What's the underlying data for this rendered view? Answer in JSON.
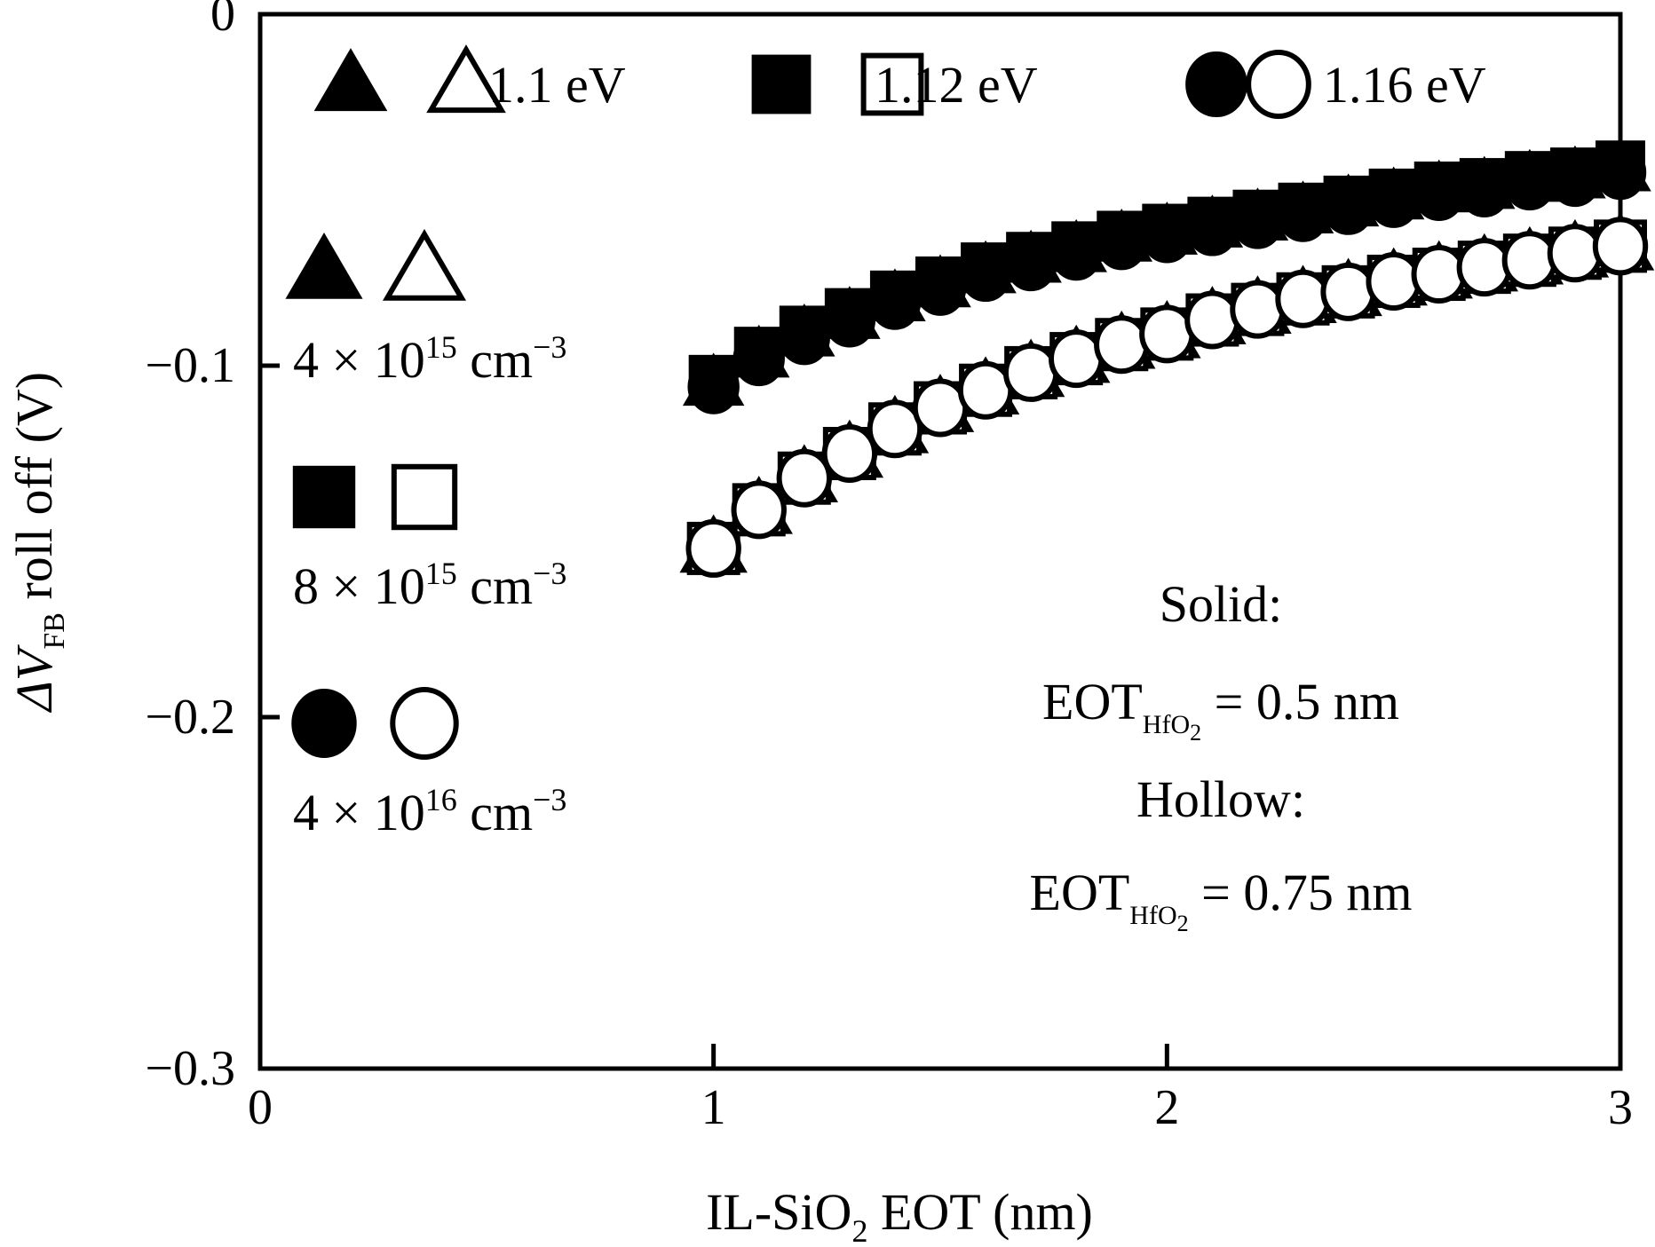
{
  "chart_data": {
    "type": "scatter",
    "title": "",
    "xlabel": {
      "main": "IL-SiO",
      "sub": "2",
      "tail": " EOT (nm)"
    },
    "ylabel": {
      "prefix": "ΔV",
      "sub": "FB",
      "tail": " roll off (V)"
    },
    "xlim": [
      0,
      3
    ],
    "ylim": [
      -0.3,
      0
    ],
    "xticks": [
      0,
      1,
      2,
      3
    ],
    "xtick_labels": [
      "0",
      "1",
      "2",
      "3"
    ],
    "yticks": [
      0,
      -0.1,
      -0.2,
      -0.3
    ],
    "ytick_labels": [
      "0",
      "−0.1",
      "−0.2",
      "−0.3"
    ],
    "x": [
      1.0,
      1.1,
      1.2,
      1.3,
      1.4,
      1.5,
      1.6,
      1.7,
      1.8,
      1.9,
      2.0,
      2.1,
      2.2,
      2.3,
      2.4,
      2.5,
      2.6,
      2.7,
      2.8,
      2.9,
      3.0
    ],
    "series": [
      {
        "name": "1.1 eV, 4 × 10^15 cm^-3, EOT_HfO2 = 0.5 nm",
        "marker": "triangle",
        "filled": true,
        "values": [
          -0.105,
          -0.097,
          -0.091,
          -0.086,
          -0.081,
          -0.077,
          -0.073,
          -0.07,
          -0.067,
          -0.064,
          -0.062,
          -0.06,
          -0.058,
          -0.056,
          -0.054,
          -0.052,
          -0.05,
          -0.049,
          -0.047,
          -0.046,
          -0.044
        ]
      },
      {
        "name": "1.12 eV, 8 × 10^15 cm^-3, EOT_HfO2 = 0.5 nm",
        "marker": "square",
        "filled": true,
        "values": [
          -0.104,
          -0.096,
          -0.09,
          -0.085,
          -0.08,
          -0.076,
          -0.072,
          -0.069,
          -0.066,
          -0.063,
          -0.061,
          -0.059,
          -0.057,
          -0.055,
          -0.053,
          -0.051,
          -0.049,
          -0.048,
          -0.046,
          -0.045,
          -0.043
        ]
      },
      {
        "name": "1.16 eV, 4 × 10^16 cm^-3, EOT_HfO2 = 0.5 nm",
        "marker": "circle",
        "filled": true,
        "values": [
          -0.106,
          -0.098,
          -0.092,
          -0.087,
          -0.082,
          -0.078,
          -0.074,
          -0.071,
          -0.068,
          -0.065,
          -0.063,
          -0.061,
          -0.059,
          -0.057,
          -0.055,
          -0.053,
          -0.051,
          -0.05,
          -0.048,
          -0.047,
          -0.045
        ]
      },
      {
        "name": "1.1 eV, 4 × 10^15 cm^-3, EOT_HfO2 = 0.75 nm",
        "marker": "triangle",
        "filled": false,
        "values": [
          -0.152,
          -0.141,
          -0.132,
          -0.125,
          -0.118,
          -0.112,
          -0.107,
          -0.102,
          -0.098,
          -0.094,
          -0.091,
          -0.087,
          -0.084,
          -0.081,
          -0.079,
          -0.076,
          -0.074,
          -0.072,
          -0.07,
          -0.068,
          -0.066
        ]
      },
      {
        "name": "1.12 eV, 8 × 10^15 cm^-3, EOT_HfO2 = 0.75 nm",
        "marker": "square",
        "filled": false,
        "values": [
          -0.152,
          -0.141,
          -0.132,
          -0.125,
          -0.118,
          -0.112,
          -0.107,
          -0.102,
          -0.098,
          -0.094,
          -0.091,
          -0.087,
          -0.084,
          -0.081,
          -0.079,
          -0.076,
          -0.074,
          -0.072,
          -0.07,
          -0.068,
          -0.066
        ]
      },
      {
        "name": "1.16 eV, 4 × 10^16 cm^-3, EOT_HfO2 = 0.75 nm",
        "marker": "circle",
        "filled": false,
        "values": [
          -0.152,
          -0.141,
          -0.132,
          -0.125,
          -0.118,
          -0.112,
          -0.107,
          -0.102,
          -0.098,
          -0.094,
          -0.091,
          -0.087,
          -0.084,
          -0.081,
          -0.079,
          -0.076,
          -0.074,
          -0.072,
          -0.07,
          -0.068,
          -0.066
        ]
      }
    ],
    "legend_top": [
      {
        "label": "1.1 eV",
        "marker": "triangle"
      },
      {
        "label": "1.12 eV",
        "marker": "square"
      },
      {
        "label": "1.16 eV",
        "marker": "circle"
      }
    ],
    "legend_left": [
      {
        "marker": "triangle",
        "label": "4 × 10",
        "exp": "15",
        "unit": " cm",
        "unit_exp": "−3"
      },
      {
        "marker": "square",
        "label": "8 × 10",
        "exp": "15",
        "unit": " cm",
        "unit_exp": "−3"
      },
      {
        "marker": "circle",
        "label": "4 × 10",
        "exp": "16",
        "unit": " cm",
        "unit_exp": "−3"
      }
    ],
    "annotations": {
      "solid_label": "Solid:",
      "solid_eot": {
        "main": "EOT",
        "sub": "HfO",
        "subsub": "2",
        "tail": " = 0.5 nm"
      },
      "hollow_label": "Hollow:",
      "hollow_eot": {
        "main": "EOT",
        "sub": "HfO",
        "subsub": "2",
        "tail": " = 0.75 nm"
      }
    },
    "grid": false,
    "legend_position": "top and left inside"
  }
}
